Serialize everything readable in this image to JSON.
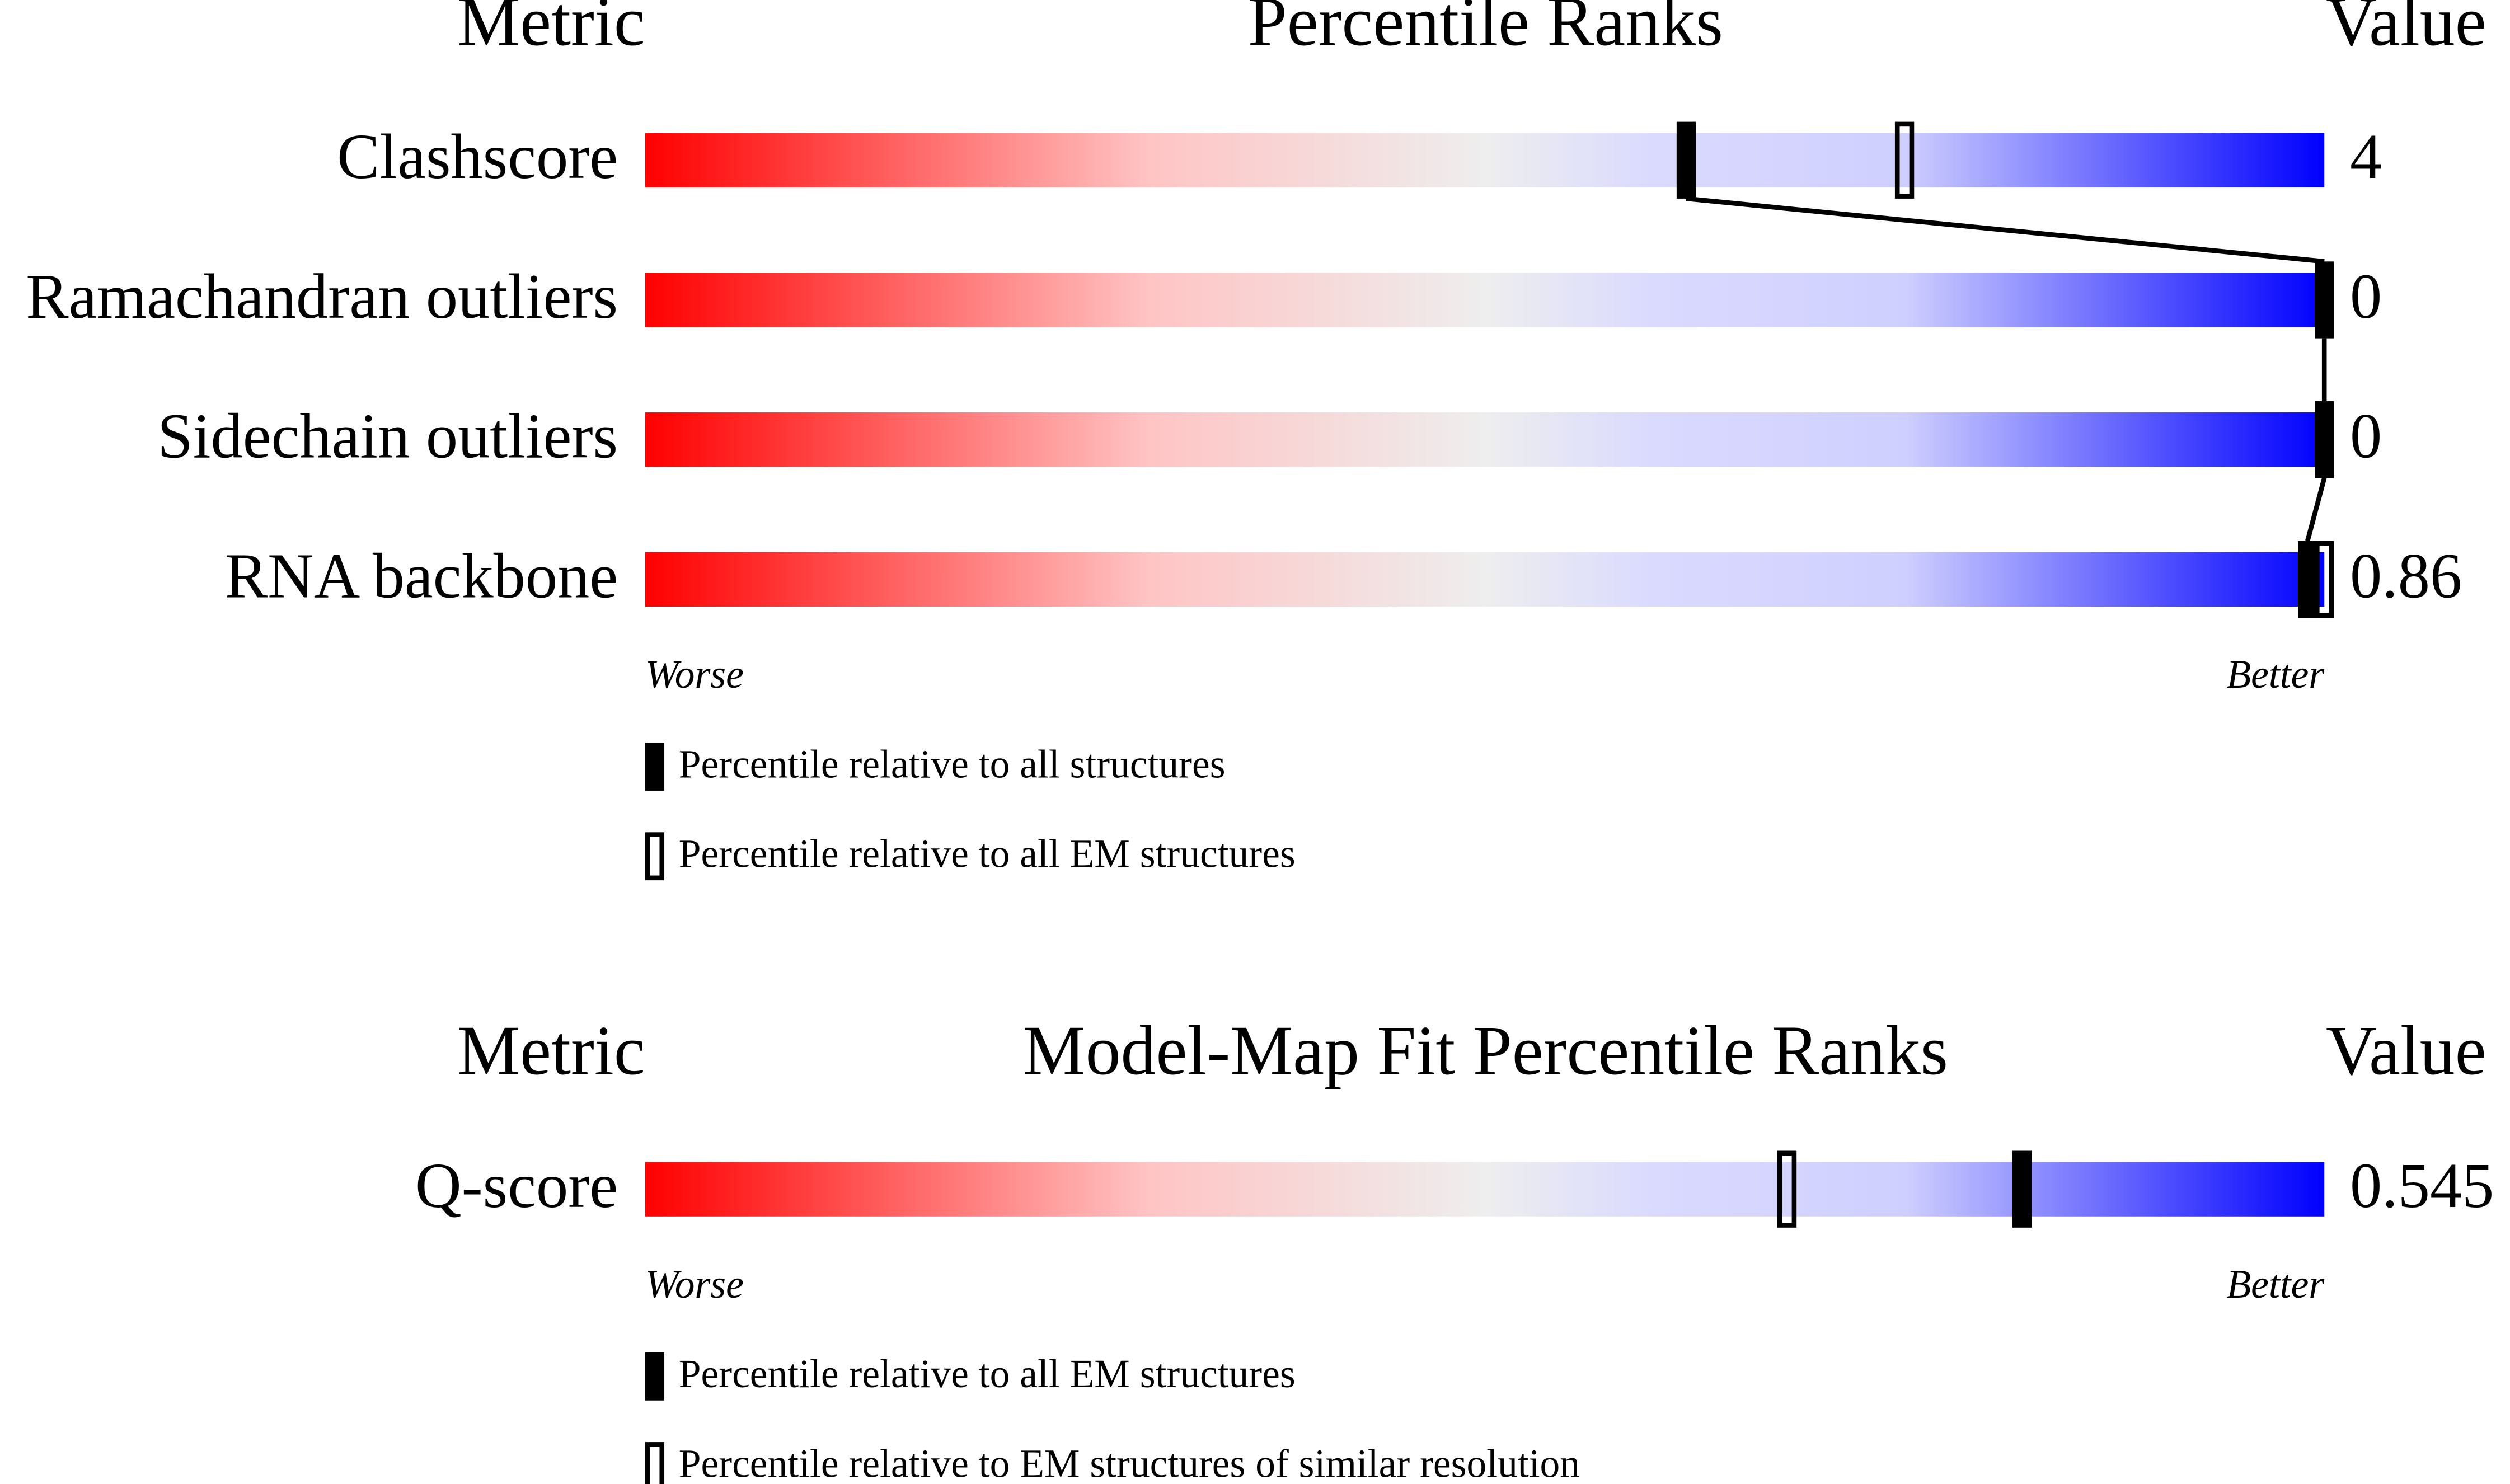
{
  "panels": [
    {
      "headers": {
        "metric": "Metric",
        "title": "Percentile Ranks",
        "value": "Value"
      },
      "rows": [
        {
          "metric": "Clashscore",
          "value": 4,
          "percentile_filled": 62,
          "percentile_open": 75
        },
        {
          "metric": "Ramachandran outliers",
          "value": 0,
          "percentile_filled": 100
        },
        {
          "metric": "Sidechain outliers",
          "value": 0,
          "percentile_filled": 100
        },
        {
          "metric": "RNA backbone",
          "value": 0.86,
          "percentile_filled": 99,
          "percentile_open": 100
        }
      ],
      "scale": {
        "worse": "Worse",
        "better": "Better"
      },
      "legend": {
        "filled": "Percentile relative to all structures",
        "open": "Percentile relative to all EM structures"
      }
    },
    {
      "headers": {
        "metric": "Metric",
        "title": "Model-Map Fit Percentile Ranks",
        "value": "Value"
      },
      "rows": [
        {
          "metric": "Q-score",
          "value": 0.545,
          "percentile_filled": 82,
          "percentile_open": 68
        }
      ],
      "scale": {
        "worse": "Worse",
        "better": "Better"
      },
      "legend": {
        "filled": "Percentile relative to all EM structures",
        "open": "Percentile relative to EM structures of similar resolution"
      }
    }
  ]
}
